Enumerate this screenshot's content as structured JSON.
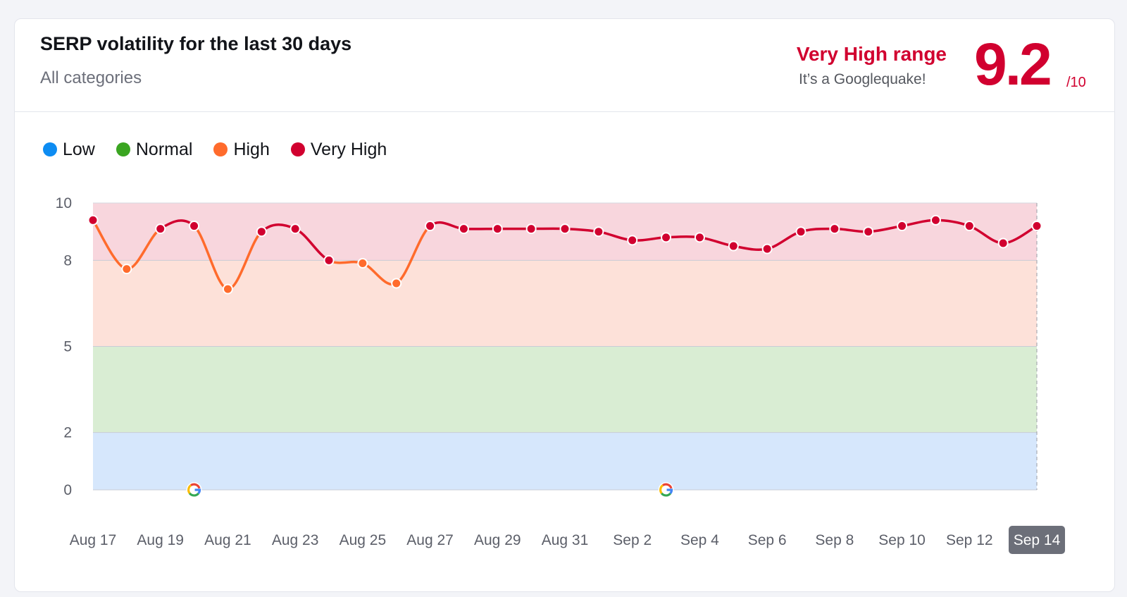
{
  "header": {
    "title": "SERP volatility for the last 30 days",
    "subtitle": "All categories",
    "range_label": "Very High range",
    "range_desc": "It’s a Googlequake!",
    "score": "9.2",
    "score_denom": "/10"
  },
  "legend": [
    {
      "label": "Low",
      "color": "#0d8cf2"
    },
    {
      "label": "Normal",
      "color": "#3aa521"
    },
    {
      "label": "High",
      "color": "#ff6b2c"
    },
    {
      "label": "Very High",
      "color": "#d1002f"
    }
  ],
  "chart_data": {
    "type": "line",
    "title": "SERP volatility for the last 30 days",
    "xlabel": "",
    "ylabel": "",
    "ylim": [
      0,
      10
    ],
    "y_ticks": [
      0,
      2,
      5,
      8,
      10
    ],
    "bands": [
      {
        "name": "Low",
        "from": 0,
        "to": 2,
        "color": "#d6e7fc"
      },
      {
        "name": "Normal",
        "from": 2,
        "to": 5,
        "color": "#d9edd3"
      },
      {
        "name": "High",
        "from": 5,
        "to": 8,
        "color": "#fde1d9"
      },
      {
        "name": "Very High",
        "from": 8,
        "to": 10,
        "color": "#f8d6dd"
      }
    ],
    "x": [
      "Aug 17",
      "Aug 18",
      "Aug 19",
      "Aug 20",
      "Aug 21",
      "Aug 22",
      "Aug 23",
      "Aug 24",
      "Aug 25",
      "Aug 26",
      "Aug 27",
      "Aug 28",
      "Aug 29",
      "Aug 30",
      "Aug 31",
      "Sep 1",
      "Sep 2",
      "Sep 3",
      "Sep 4",
      "Sep 5",
      "Sep 6",
      "Sep 7",
      "Sep 8",
      "Sep 9",
      "Sep 10",
      "Sep 11",
      "Sep 12",
      "Sep 13",
      "Sep 14"
    ],
    "x_tick_labels": [
      "Aug 17",
      "Aug 19",
      "Aug 21",
      "Aug 23",
      "Aug 25",
      "Aug 27",
      "Aug 29",
      "Aug 31",
      "Sep 2",
      "Sep 4",
      "Sep 6",
      "Sep 8",
      "Sep 10",
      "Sep 12",
      "Sep 14"
    ],
    "highlighted_tick": "Sep 14",
    "values": [
      9.4,
      7.7,
      9.1,
      9.2,
      7.0,
      9.0,
      9.1,
      8.0,
      7.9,
      7.2,
      9.2,
      9.1,
      9.1,
      9.1,
      9.1,
      9.0,
      8.7,
      8.8,
      8.8,
      8.5,
      8.4,
      9.0,
      9.1,
      9.0,
      9.2,
      9.4,
      9.2,
      8.6,
      9.2
    ],
    "google_updates": [
      "Aug 20",
      "Sep 3"
    ]
  }
}
